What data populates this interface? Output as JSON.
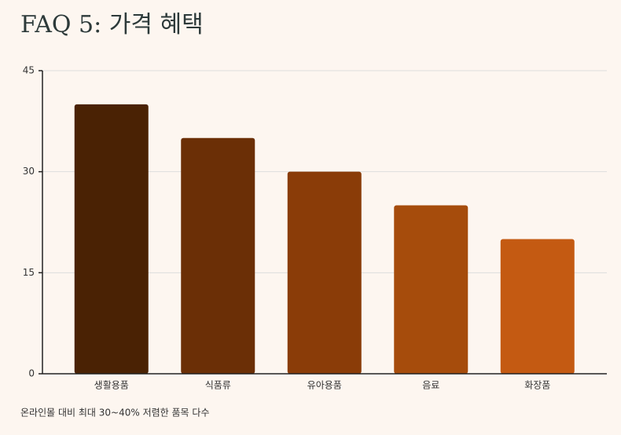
{
  "chart_data": {
    "type": "bar",
    "title": "FAQ 5: 가격 혜택",
    "categories": [
      "생활용품",
      "식품류",
      "유아용품",
      "음료",
      "화장품"
    ],
    "values": [
      40,
      35,
      30,
      25,
      20
    ],
    "colors": [
      "#4a2204",
      "#6b2f06",
      "#8a3c08",
      "#a64c0c",
      "#c45a12"
    ],
    "ylim": [
      0,
      45
    ],
    "yticks": [
      0,
      15,
      30,
      45
    ],
    "grid": true,
    "note": "온라인몰 대비 최대 30~40% 저렴한 품목 다수"
  }
}
